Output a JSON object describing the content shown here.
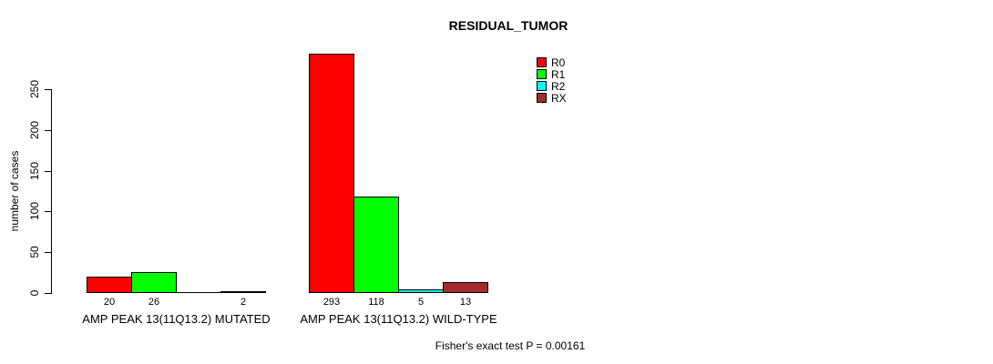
{
  "title": "RESIDUAL_TUMOR",
  "ylabel": "number of cases",
  "footer": "Fisher's exact test P = 0.00161",
  "chart_data": {
    "type": "bar",
    "grouped": true,
    "title": "RESIDUAL_TUMOR",
    "xlabel": "",
    "ylabel": "number of cases",
    "categories": [
      "AMP PEAK 13(11Q13.2) MUTATED",
      "AMP PEAK 13(11Q13.2) WILD-TYPE"
    ],
    "series": [
      {
        "name": "R0",
        "color": "#FF0000",
        "values": [
          20,
          293
        ]
      },
      {
        "name": "R1",
        "color": "#00FF00",
        "values": [
          26,
          118
        ]
      },
      {
        "name": "R2",
        "color": "#00FFFF",
        "values": [
          0,
          5
        ]
      },
      {
        "name": "RX",
        "color": "#A52A2A",
        "values": [
          2,
          13
        ]
      }
    ],
    "bar_value_labels": [
      [
        "20",
        "26",
        "",
        "2"
      ],
      [
        "293",
        "118",
        "5",
        "13"
      ]
    ],
    "yticks": [
      0,
      50,
      100,
      150,
      200,
      250
    ],
    "ylim": [
      0,
      293
    ],
    "grid": false,
    "legend_position": "top-right",
    "annotation": "Fisher's exact test P = 0.00161"
  }
}
